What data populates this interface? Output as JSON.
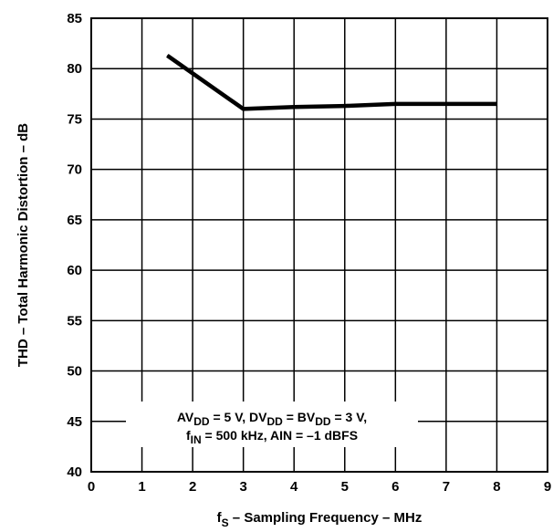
{
  "chart_data": {
    "type": "line",
    "title": "",
    "xlabel": {
      "pre": "f",
      "sub": "S",
      "post": " – Sampling Frequency – MHz"
    },
    "ylabel": "THD – Total Harmonic Distortion – dB",
    "xlim": [
      0,
      9
    ],
    "ylim": [
      40,
      85
    ],
    "x_ticks": [
      "0",
      "1",
      "2",
      "3",
      "4",
      "5",
      "6",
      "7",
      "8",
      "9"
    ],
    "y_ticks": [
      "40",
      "45",
      "50",
      "55",
      "60",
      "65",
      "70",
      "75",
      "80",
      "85"
    ],
    "grid": true,
    "series": [
      {
        "x": [
          1.5,
          3.0,
          4.0,
          5.0,
          6.0,
          7.0,
          8.0
        ],
        "y": [
          81.3,
          76.0,
          76.2,
          76.3,
          76.5,
          76.5,
          76.5
        ]
      }
    ],
    "annotation": {
      "line1": {
        "a": "AV",
        "a_sub": "DD",
        "b": " = 5 V, DV",
        "b_sub": "DD",
        "c": " = BV",
        "c_sub": "DD",
        "d": " = 3 V,"
      },
      "line2": {
        "a": "f",
        "a_sub": "IN",
        "b": " = 500 kHz, AIN = –1 dBFS"
      }
    },
    "colors": {
      "line": "#000000",
      "grid": "#000000",
      "background": "#ffffff"
    }
  }
}
